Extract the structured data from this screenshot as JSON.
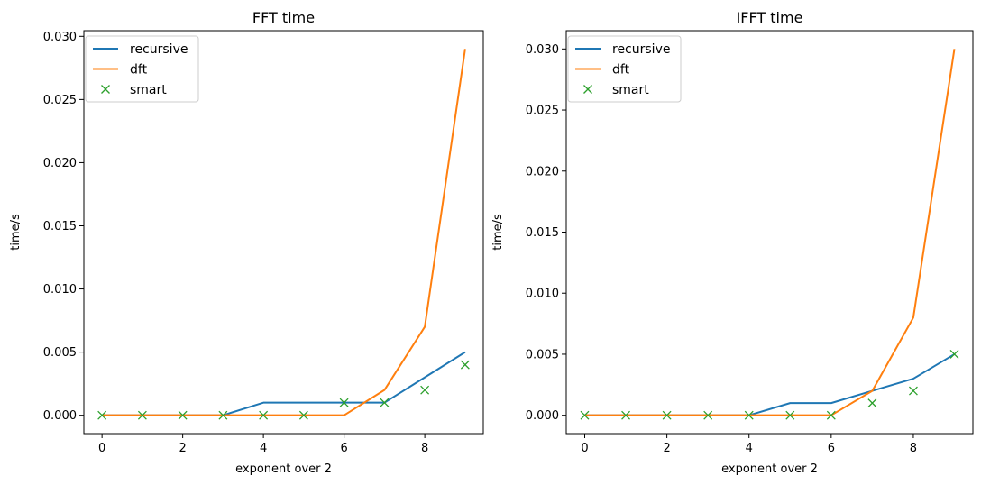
{
  "chart_data": [
    {
      "type": "line",
      "title": "FFT time",
      "xlabel": "exponent over 2",
      "ylabel": "time/s",
      "xlim": [
        -0.45,
        9.45
      ],
      "ylim": [
        -0.00145,
        0.03045
      ],
      "xticks": [
        0,
        2,
        4,
        6,
        8
      ],
      "xtick_labels": [
        "0",
        "2",
        "4",
        "6",
        "8"
      ],
      "yticks": [
        0,
        0.005,
        0.01,
        0.015,
        0.02,
        0.025,
        0.03
      ],
      "ytick_labels": [
        "0.000",
        "0.005",
        "0.010",
        "0.015",
        "0.020",
        "0.025",
        "0.030"
      ],
      "grid": false,
      "legend": "top-left",
      "x": [
        0,
        1,
        2,
        3,
        4,
        5,
        6,
        7,
        8,
        9
      ],
      "series": [
        {
          "name": "recursive",
          "style": "line",
          "color": "#1f77b4",
          "values": [
            0,
            0,
            0,
            0,
            0.001,
            0.001,
            0.001,
            0.001,
            0.003,
            0.005
          ]
        },
        {
          "name": "dft",
          "style": "line",
          "color": "#ff7f0e",
          "values": [
            0,
            0,
            0,
            0,
            0,
            0,
            0,
            0.002,
            0.007,
            0.029
          ]
        },
        {
          "name": "smart",
          "style": "marker-x",
          "color": "#2ca02c",
          "values": [
            0,
            0,
            0,
            0,
            0,
            0,
            0.001,
            0.001,
            0.002,
            0.004
          ]
        }
      ]
    },
    {
      "type": "line",
      "title": "IFFT time",
      "xlabel": "exponent over 2",
      "ylabel": "time/s",
      "xlim": [
        -0.45,
        9.45
      ],
      "ylim": [
        -0.0015,
        0.0315
      ],
      "xticks": [
        0,
        2,
        4,
        6,
        8
      ],
      "xtick_labels": [
        "0",
        "2",
        "4",
        "6",
        "8"
      ],
      "yticks": [
        0,
        0.005,
        0.01,
        0.015,
        0.02,
        0.025,
        0.03
      ],
      "ytick_labels": [
        "0.000",
        "0.005",
        "0.010",
        "0.015",
        "0.020",
        "0.025",
        "0.030"
      ],
      "grid": false,
      "legend": "top-left",
      "x": [
        0,
        1,
        2,
        3,
        4,
        5,
        6,
        7,
        8,
        9
      ],
      "series": [
        {
          "name": "recursive",
          "style": "line",
          "color": "#1f77b4",
          "values": [
            0,
            0,
            0,
            0,
            0,
            0.001,
            0.001,
            0.002,
            0.003,
            0.005
          ]
        },
        {
          "name": "dft",
          "style": "line",
          "color": "#ff7f0e",
          "values": [
            0,
            0,
            0,
            0,
            0,
            0,
            0,
            0.002,
            0.008,
            0.03
          ]
        },
        {
          "name": "smart",
          "style": "marker-x",
          "color": "#2ca02c",
          "values": [
            0,
            0,
            0,
            0,
            0,
            0,
            0,
            0.001,
            0.002,
            0.005
          ]
        }
      ]
    }
  ]
}
